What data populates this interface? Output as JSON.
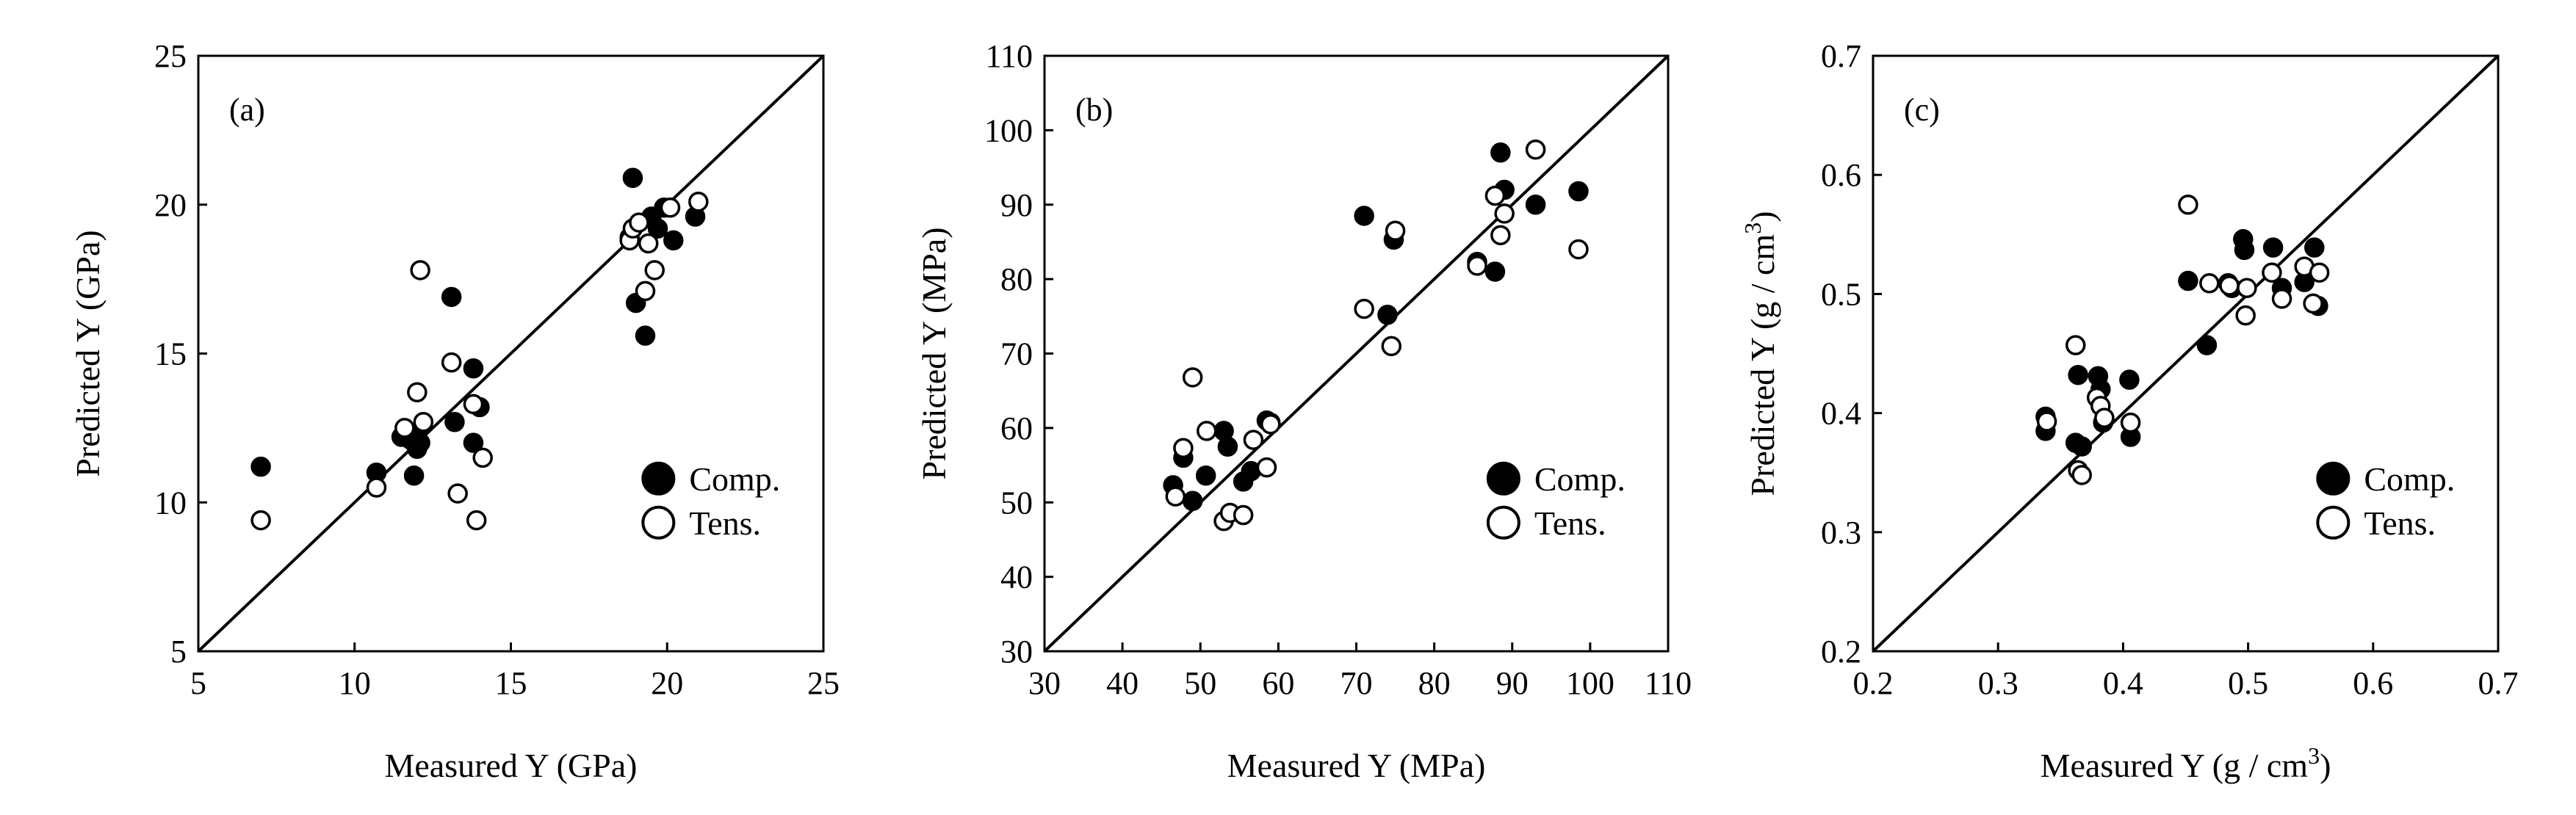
{
  "chart_data": [
    {
      "type": "scatter",
      "panel_label": "(a)",
      "xlabel": "Measured Y (GPa)",
      "ylabel": "Predicted Y (GPa)",
      "xlim": [
        5,
        25
      ],
      "ylim": [
        5,
        25
      ],
      "xticks": [
        5,
        10,
        15,
        20,
        25
      ],
      "yticks": [
        5,
        10,
        15,
        20,
        25
      ],
      "tick_labels": [
        "5",
        "10",
        "15",
        "20",
        "25"
      ],
      "diagonal": true,
      "legend": {
        "position": "bottom-right",
        "entries": [
          "Comp.",
          "Tens."
        ]
      },
      "series": [
        {
          "name": "Comp.",
          "marker": "filled-circle",
          "x": [
            7.0,
            10.7,
            11.5,
            11.8,
            11.9,
            12.0,
            12.0,
            12.1,
            13.1,
            13.2,
            13.8,
            13.8,
            14.0,
            18.8,
            18.9,
            19.0,
            19.3,
            19.5,
            19.7,
            19.9,
            20.2,
            20.9
          ],
          "y": [
            11.2,
            11.0,
            12.2,
            12.1,
            10.9,
            11.8,
            12.3,
            12.0,
            16.9,
            12.7,
            14.5,
            12.0,
            13.2,
            18.9,
            20.9,
            16.7,
            15.6,
            19.6,
            19.2,
            19.9,
            18.8,
            19.6
          ]
        },
        {
          "name": "Tens.",
          "marker": "open-circle",
          "x": [
            7.0,
            10.7,
            11.6,
            12.0,
            12.1,
            12.2,
            13.1,
            13.3,
            13.8,
            13.9,
            14.1,
            18.8,
            18.9,
            19.1,
            19.3,
            19.4,
            19.6,
            20.1,
            21.0
          ],
          "y": [
            9.4,
            10.5,
            12.5,
            13.7,
            17.8,
            12.7,
            14.7,
            10.3,
            13.3,
            9.4,
            11.5,
            18.8,
            19.2,
            19.4,
            17.1,
            18.7,
            17.8,
            19.9,
            20.1
          ]
        }
      ]
    },
    {
      "type": "scatter",
      "panel_label": "(b)",
      "xlabel": "Measured Y (MPa)",
      "ylabel": "Predicted Y (MPa)",
      "xlim": [
        30,
        110
      ],
      "ylim": [
        30,
        110
      ],
      "xticks": [
        30,
        40,
        50,
        60,
        70,
        80,
        90,
        100,
        110
      ],
      "yticks": [
        30,
        40,
        50,
        60,
        70,
        80,
        90,
        100,
        110
      ],
      "tick_labels": [
        "30",
        "40",
        "50",
        "60",
        "70",
        "80",
        "90",
        "100",
        "110"
      ],
      "diagonal": true,
      "legend": {
        "position": "bottom-right",
        "entries": [
          "Comp.",
          "Tens."
        ]
      },
      "series": [
        {
          "name": "Comp.",
          "marker": "filled-circle",
          "x": [
            46.5,
            47.8,
            49.0,
            50.7,
            53.0,
            53.5,
            55.5,
            56.5,
            58.5,
            59.0,
            71.0,
            74.0,
            74.8,
            85.5,
            87.8,
            88.5,
            89.0,
            93.0,
            98.5
          ],
          "y": [
            52.3,
            56.0,
            50.2,
            53.6,
            59.6,
            57.5,
            52.8,
            54.2,
            61.0,
            60.7,
            88.5,
            75.2,
            85.3,
            82.3,
            81.0,
            97.0,
            92.0,
            90.0,
            91.8
          ]
        },
        {
          "name": "Tens.",
          "marker": "open-circle",
          "x": [
            46.8,
            47.8,
            49.0,
            50.8,
            53.0,
            53.8,
            55.5,
            56.8,
            58.5,
            59.0,
            71.0,
            74.5,
            75.0,
            85.5,
            87.8,
            88.5,
            89.0,
            93.0,
            98.5
          ],
          "y": [
            50.8,
            57.3,
            66.8,
            59.6,
            47.5,
            48.6,
            48.3,
            58.4,
            54.7,
            60.5,
            76.0,
            71.0,
            86.5,
            81.8,
            91.2,
            85.9,
            88.8,
            97.4,
            84.0
          ]
        }
      ]
    },
    {
      "type": "scatter",
      "panel_label": "(c)",
      "xlabel": "Measured Y (g / cm³)",
      "ylabel": "Predicted Y (g / cm³)",
      "xlim": [
        0.2,
        0.7
      ],
      "ylim": [
        0.2,
        0.7
      ],
      "xticks": [
        0.2,
        0.3,
        0.4,
        0.5,
        0.6,
        0.7
      ],
      "yticks": [
        0.2,
        0.3,
        0.4,
        0.5,
        0.6,
        0.7
      ],
      "tick_labels": [
        "0.2",
        "0.3",
        "0.4",
        "0.5",
        "0.6",
        "0.7"
      ],
      "diagonal": true,
      "legend": {
        "position": "bottom-right",
        "entries": [
          "Comp.",
          "Tens."
        ]
      },
      "series": [
        {
          "name": "Comp.",
          "marker": "filled-circle",
          "x": [
            0.338,
            0.338,
            0.362,
            0.364,
            0.367,
            0.38,
            0.382,
            0.384,
            0.405,
            0.406,
            0.452,
            0.467,
            0.484,
            0.487,
            0.496,
            0.497,
            0.52,
            0.527,
            0.545,
            0.553,
            0.556
          ],
          "y": [
            0.397,
            0.385,
            0.375,
            0.432,
            0.372,
            0.431,
            0.42,
            0.392,
            0.428,
            0.38,
            0.511,
            0.457,
            0.509,
            0.505,
            0.546,
            0.537,
            0.539,
            0.505,
            0.51,
            0.539,
            0.49
          ]
        },
        {
          "name": "Tens.",
          "marker": "open-circle",
          "x": [
            0.339,
            0.362,
            0.364,
            0.367,
            0.379,
            0.382,
            0.385,
            0.406,
            0.452,
            0.469,
            0.485,
            0.498,
            0.499,
            0.519,
            0.527,
            0.545,
            0.552,
            0.557
          ],
          "y": [
            0.393,
            0.457,
            0.352,
            0.348,
            0.413,
            0.406,
            0.396,
            0.392,
            0.575,
            0.509,
            0.507,
            0.482,
            0.505,
            0.518,
            0.496,
            0.523,
            0.492,
            0.518
          ]
        }
      ]
    }
  ]
}
